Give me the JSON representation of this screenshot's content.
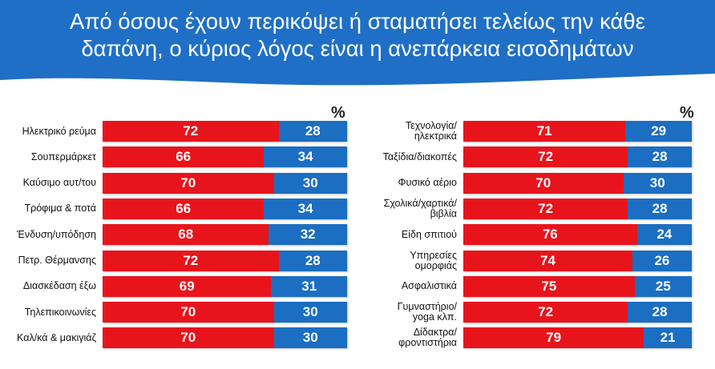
{
  "title_lines": [
    "Από όσους έχουν περικόψει ή σταματήσει τελείως την κάθε",
    "δαπάνη, ο κύριος λόγος είναι η ανεπάρκεια εισοδημάτων"
  ],
  "colors": {
    "header": "#1f6fc6",
    "red": "#e8141c",
    "blue": "#1b6ec1"
  },
  "chart_data": [
    {
      "type": "bar",
      "orientation": "horizontal",
      "stacked": true,
      "unit": "%",
      "categories": [
        "Ηλεκτρικό ρεύμα",
        "Σουπερμάρκετ",
        "Καύσιμο αυτ/του",
        "Τρόφιμα & ποτά",
        "Ένδυση/υπόδηση",
        "Πετρ. Θέρμανσης",
        "Διασκέδαση έξω",
        "Τηλεπικοινωνίες",
        "Καλ/κά & μακιγιάζ"
      ],
      "series": [
        {
          "values": [
            72,
            66,
            70,
            66,
            68,
            72,
            69,
            70,
            70
          ]
        },
        {
          "values": [
            28,
            34,
            30,
            34,
            32,
            28,
            31,
            30,
            30
          ]
        }
      ]
    },
    {
      "type": "bar",
      "orientation": "horizontal",
      "stacked": true,
      "unit": "%",
      "categories": [
        "Τεχνολογία/\nηλεκτρικά",
        "Ταξίδια/διακοπές",
        "Φυσικό αέριο",
        "Σχολικά/χαρτικά/\nβιβλία",
        "Είδη σπιτιού",
        "Υπηρεσίες\nομορφιάς",
        "Ασφαλιστικά",
        "Γυμναστήριο/\nyoga κλπ.",
        "Δίδακτρα/\nφροντιστήρια"
      ],
      "series": [
        {
          "values": [
            71,
            72,
            70,
            72,
            76,
            74,
            75,
            72,
            79
          ]
        },
        {
          "values": [
            29,
            28,
            30,
            28,
            24,
            26,
            25,
            28,
            21
          ]
        }
      ]
    }
  ]
}
